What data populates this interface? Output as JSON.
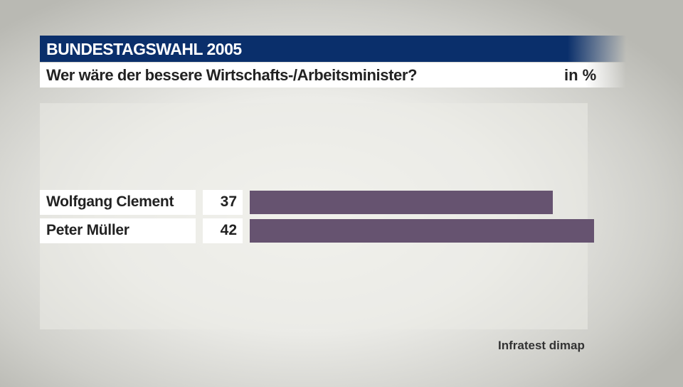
{
  "header": {
    "title": "BUNDESTAGSWAHL 2005",
    "subtitle": "Wer wäre der bessere Wirtschafts-/Arbeitsminister?",
    "unit": "in %"
  },
  "colors": {
    "title_bar": "#0a2f6b",
    "bar": "#665370",
    "label_bg": "#ffffff"
  },
  "rows": [
    {
      "label": "Wolfgang Clement",
      "value": "37"
    },
    {
      "label": "Peter Müller",
      "value": "42"
    }
  ],
  "source": "Infratest dimap",
  "chart_data": {
    "type": "bar",
    "orientation": "horizontal",
    "title": "BUNDESTAGSWAHL 2005",
    "subtitle": "Wer wäre der bessere Wirtschafts-/Arbeitsminister?",
    "unit": "in %",
    "categories": [
      "Wolfgang Clement",
      "Peter Müller"
    ],
    "values": [
      37,
      42
    ],
    "xlabel": "",
    "ylabel": "",
    "grid": false,
    "legend": null,
    "source": "Infratest dimap"
  }
}
